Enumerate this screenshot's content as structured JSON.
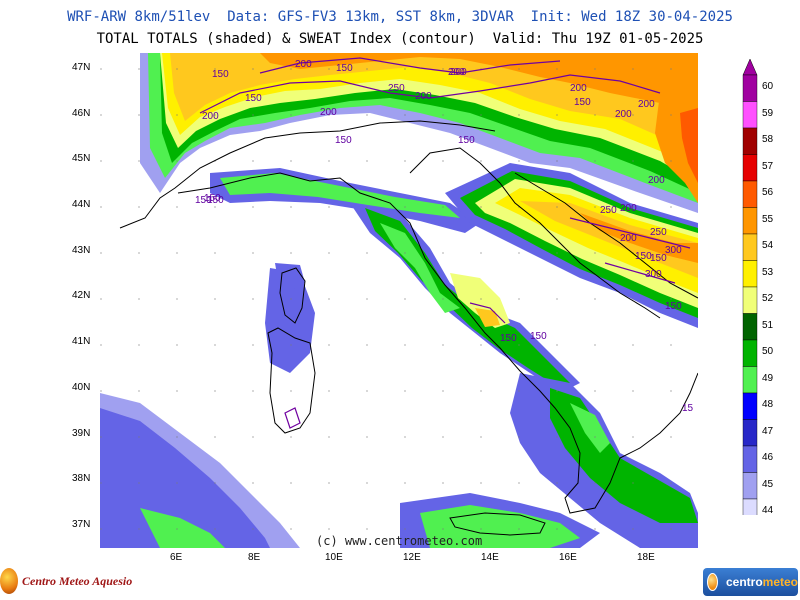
{
  "header": {
    "line1": "WRF-ARW 8km/51lev  Data: GFS-FV3 13km, SST 8km, 3DVAR  Init: Wed 18Z 30-04-2025",
    "line2": "TOTAL TOTALS (shaded) & SWEAT Index (contour)  Valid: Thu 19Z 01-05-2025"
  },
  "lat_labels": [
    "47N",
    "46N",
    "45N",
    "44N",
    "43N",
    "42N",
    "41N",
    "40N",
    "39N",
    "38N",
    "37N"
  ],
  "lon_labels": [
    "6E",
    "8E",
    "10E",
    "12E",
    "14E",
    "16E",
    "18E"
  ],
  "colorbar": {
    "levels": [
      "60",
      "59",
      "58",
      "57",
      "56",
      "55",
      "54",
      "53",
      "52",
      "51",
      "50",
      "49",
      "48",
      "47",
      "46",
      "45",
      "44"
    ],
    "colors": [
      "#a000a0",
      "#ff50ff",
      "#a00000",
      "#e60000",
      "#ff5a00",
      "#ff9600",
      "#ffc81e",
      "#fff000",
      "#f0ff78",
      "#006400",
      "#00b400",
      "#50f050",
      "#0000ff",
      "#2828c8",
      "#6464e6",
      "#a0a0f0",
      "#dcdcff"
    ]
  },
  "sweat_labels": [
    "150",
    "200",
    "250",
    "300"
  ],
  "sweat_contours": [
    {
      "text": "150"
    },
    {
      "text": "150"
    },
    {
      "text": "200"
    },
    {
      "text": "200"
    },
    {
      "text": "250"
    },
    {
      "text": "200"
    },
    {
      "text": "200"
    },
    {
      "text": "150"
    },
    {
      "text": "200"
    },
    {
      "text": "200"
    },
    {
      "text": "150"
    },
    {
      "text": "150"
    },
    {
      "text": "200"
    },
    {
      "text": "150"
    },
    {
      "text": "150"
    },
    {
      "text": "200"
    },
    {
      "text": "150"
    },
    {
      "text": "200"
    },
    {
      "text": "250"
    },
    {
      "text": "200"
    },
    {
      "text": "250"
    },
    {
      "text": "200"
    },
    {
      "text": "150"
    },
    {
      "text": "300"
    },
    {
      "text": "150"
    },
    {
      "text": "300"
    },
    {
      "text": "150"
    },
    {
      "text": "150"
    },
    {
      "text": "15"
    },
    {
      "text": "150"
    },
    {
      "text": "200"
    },
    {
      "text": "150"
    }
  ],
  "credit": "(c) www.centrometeo.com",
  "logos": {
    "left": "Centro Meteo Aquesio",
    "right_a": "centro",
    "right_b": "meteo"
  }
}
